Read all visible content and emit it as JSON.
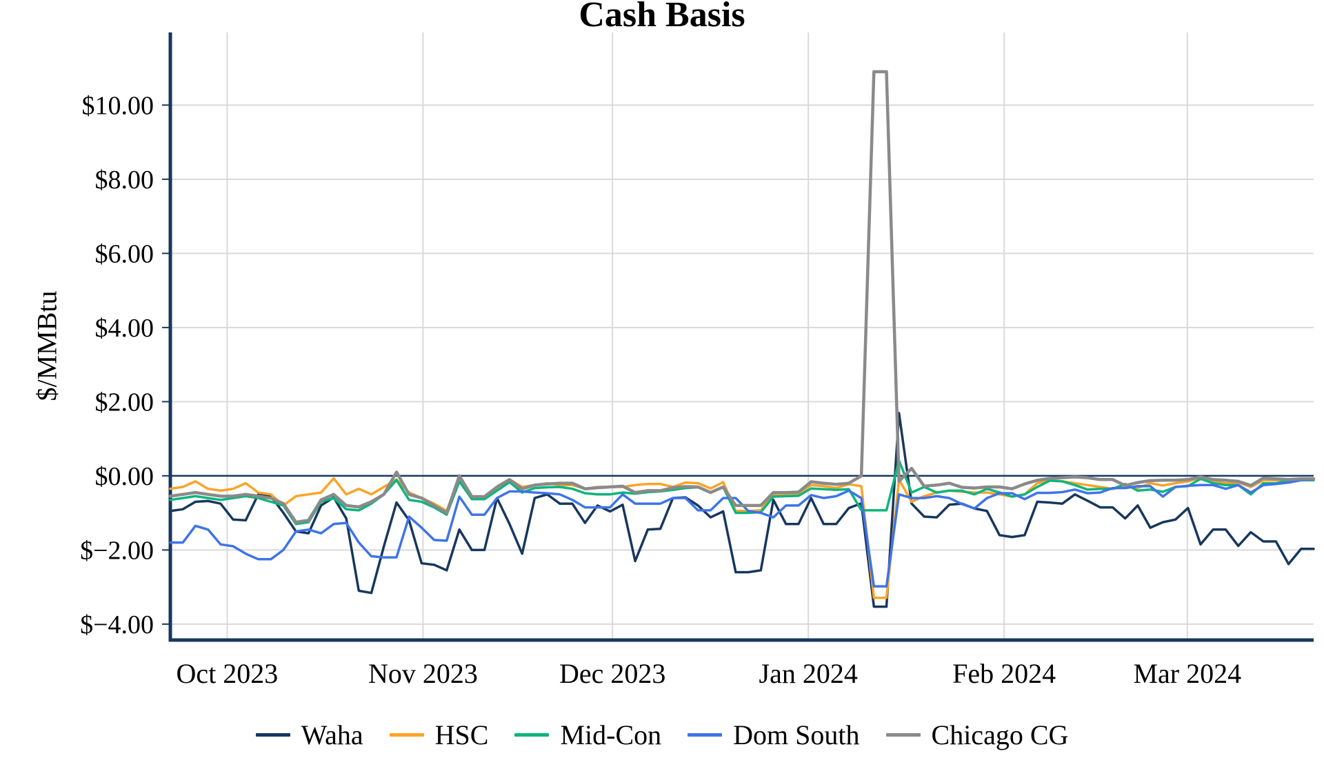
{
  "title": "Cash Basis",
  "y_axis_title": "$/MMBtu",
  "colors": {
    "axis": "#17375E",
    "gridline": "#D9D9D9",
    "zero_line": "#17375E",
    "background": "#FFFFFF",
    "title_text": "#000000"
  },
  "chart_data": {
    "type": "line",
    "title": "Cash Basis",
    "ylabel": "$/MMBtu",
    "ylim": [
      -4.43,
      11.96
    ],
    "grid": true,
    "legend_position": "bottom",
    "x_span_days": 181,
    "x_start": "2023-09-22",
    "x_end": "2024-03-21",
    "x_ticks": [
      {
        "label": "Oct 2023",
        "day": 9
      },
      {
        "label": "Nov 2023",
        "day": 40
      },
      {
        "label": "Dec 2023",
        "day": 70
      },
      {
        "label": "Jan 2024",
        "day": 101
      },
      {
        "label": "Feb 2024",
        "day": 132
      },
      {
        "label": "Mar 2024",
        "day": 161
      }
    ],
    "y_ticks": [
      {
        "label": "$10.00",
        "value": 10
      },
      {
        "label": "$8.00",
        "value": 8
      },
      {
        "label": "$6.00",
        "value": 6
      },
      {
        "label": "$4.00",
        "value": 4
      },
      {
        "label": "$2.00",
        "value": 2
      },
      {
        "label": "$0.00",
        "value": 0
      },
      {
        "label": "$−2.00",
        "value": -2
      },
      {
        "label": "$−4.00",
        "value": -4
      }
    ],
    "series": [
      {
        "name": "Waha",
        "color": "#17375E",
        "width": 3.5,
        "values": [
          -0.95,
          -0.9,
          -0.7,
          -0.68,
          -0.75,
          -1.18,
          -1.2,
          -0.5,
          -0.55,
          -1.0,
          -1.5,
          -1.55,
          -0.8,
          -0.58,
          -1.15,
          -3.1,
          -3.16,
          -1.9,
          -0.72,
          -1.2,
          -2.36,
          -2.4,
          -2.55,
          -1.45,
          -2.0,
          -2.0,
          -0.6,
          -1.3,
          -2.1,
          -0.6,
          -0.5,
          -0.75,
          -0.75,
          -1.27,
          -0.8,
          -0.96,
          -0.78,
          -2.3,
          -1.45,
          -1.43,
          -0.6,
          -0.58,
          -0.8,
          -1.12,
          -0.96,
          -2.6,
          -2.6,
          -2.55,
          -0.65,
          -1.3,
          -1.3,
          -0.6,
          -1.3,
          -1.3,
          -0.87,
          -0.74,
          -3.53,
          -3.53,
          1.69,
          -0.75,
          -1.1,
          -1.12,
          -0.78,
          -0.75,
          -0.88,
          -0.95,
          -1.6,
          -1.65,
          -1.6,
          -0.7,
          -0.72,
          -0.75,
          -0.5,
          -0.67,
          -0.85,
          -0.85,
          -1.15,
          -0.8,
          -1.4,
          -1.25,
          -1.18,
          -0.87,
          -1.85,
          -1.45,
          -1.45,
          -1.89,
          -1.52,
          -1.77,
          -1.77,
          -2.38,
          -1.97,
          -1.97
        ]
      },
      {
        "name": "HSC",
        "color": "#FCA327",
        "width": 3.5,
        "values": [
          -0.35,
          -0.3,
          -0.15,
          -0.35,
          -0.4,
          -0.35,
          -0.2,
          -0.45,
          -0.5,
          -0.8,
          -0.55,
          -0.5,
          -0.45,
          -0.07,
          -0.5,
          -0.35,
          -0.5,
          -0.3,
          -0.1,
          -0.45,
          -0.6,
          -0.75,
          -0.95,
          -0.05,
          -0.6,
          -0.6,
          -0.35,
          -0.1,
          -0.3,
          -0.25,
          -0.2,
          -0.25,
          -0.25,
          -0.35,
          -0.3,
          -0.3,
          -0.3,
          -0.25,
          -0.22,
          -0.22,
          -0.3,
          -0.18,
          -0.2,
          -0.34,
          -0.17,
          -0.95,
          -0.95,
          -0.93,
          -0.5,
          -0.5,
          -0.48,
          -0.25,
          -0.28,
          -0.33,
          -0.23,
          -0.28,
          -3.29,
          -3.29,
          -0.1,
          -0.7,
          -0.55,
          -0.45,
          -0.4,
          -0.43,
          -0.45,
          -0.45,
          -0.5,
          -0.56,
          -0.5,
          -0.2,
          -0.12,
          -0.15,
          -0.2,
          -0.25,
          -0.3,
          -0.35,
          -0.3,
          -0.33,
          -0.2,
          -0.26,
          -0.2,
          -0.15,
          -0.05,
          -0.15,
          -0.2,
          -0.18,
          -0.3,
          -0.12,
          -0.12,
          -0.1,
          -0.1,
          -0.1
        ]
      },
      {
        "name": "Mid-Con",
        "color": "#0CB57C",
        "width": 3.5,
        "values": [
          -0.65,
          -0.6,
          -0.55,
          -0.6,
          -0.65,
          -0.6,
          -0.55,
          -0.6,
          -0.7,
          -0.8,
          -1.3,
          -1.25,
          -0.7,
          -0.6,
          -0.9,
          -0.93,
          -0.75,
          -0.5,
          -0.11,
          -0.65,
          -0.7,
          -0.85,
          -1.05,
          -0.15,
          -0.63,
          -0.63,
          -0.4,
          -0.17,
          -0.45,
          -0.33,
          -0.31,
          -0.3,
          -0.35,
          -0.47,
          -0.5,
          -0.5,
          -0.45,
          -0.48,
          -0.44,
          -0.42,
          -0.38,
          -0.33,
          -0.31,
          -0.45,
          -0.3,
          -1.0,
          -1.0,
          -0.98,
          -0.56,
          -0.55,
          -0.54,
          -0.34,
          -0.36,
          -0.38,
          -0.36,
          -0.93,
          -0.93,
          -0.93,
          0.41,
          -0.45,
          -0.3,
          -0.45,
          -0.4,
          -0.4,
          -0.5,
          -0.35,
          -0.45,
          -0.56,
          -0.5,
          -0.3,
          -0.13,
          -0.15,
          -0.25,
          -0.37,
          -0.35,
          -0.35,
          -0.22,
          -0.4,
          -0.37,
          -0.43,
          -0.3,
          -0.28,
          -0.08,
          -0.2,
          -0.25,
          -0.25,
          -0.5,
          -0.2,
          -0.2,
          -0.13,
          -0.12,
          -0.12
        ]
      },
      {
        "name": "Dom South",
        "color": "#3E74E8",
        "width": 3.5,
        "values": [
          -1.8,
          -1.8,
          -1.35,
          -1.45,
          -1.85,
          -1.9,
          -2.1,
          -2.25,
          -2.25,
          -2.0,
          -1.5,
          -1.45,
          -1.55,
          -1.3,
          -1.27,
          -1.8,
          -2.17,
          -2.2,
          -2.2,
          -1.1,
          -1.4,
          -1.73,
          -1.75,
          -0.56,
          -1.05,
          -1.05,
          -0.6,
          -0.42,
          -0.42,
          -0.45,
          -0.47,
          -0.5,
          -0.65,
          -0.85,
          -0.85,
          -0.85,
          -0.5,
          -0.75,
          -0.75,
          -0.75,
          -0.6,
          -0.6,
          -0.93,
          -0.93,
          -0.6,
          -0.6,
          -0.95,
          -1.0,
          -1.12,
          -0.8,
          -0.8,
          -0.52,
          -0.6,
          -0.55,
          -0.4,
          -0.6,
          -2.98,
          -2.98,
          -0.5,
          -0.6,
          -0.6,
          -0.55,
          -0.6,
          -0.76,
          -0.88,
          -0.6,
          -0.47,
          -0.47,
          -0.63,
          -0.46,
          -0.46,
          -0.44,
          -0.37,
          -0.47,
          -0.45,
          -0.33,
          -0.33,
          -0.28,
          -0.28,
          -0.56,
          -0.3,
          -0.27,
          -0.25,
          -0.25,
          -0.35,
          -0.25,
          -0.45,
          -0.25,
          -0.22,
          -0.18,
          -0.12,
          -0.1
        ]
      },
      {
        "name": "Chicago CG",
        "color": "#8A8A8A",
        "width": 4.5,
        "values": [
          -0.55,
          -0.5,
          -0.45,
          -0.5,
          -0.55,
          -0.55,
          -0.5,
          -0.55,
          -0.6,
          -0.75,
          -1.25,
          -1.2,
          -0.65,
          -0.5,
          -0.8,
          -0.84,
          -0.7,
          -0.5,
          0.1,
          -0.5,
          -0.6,
          -0.8,
          -1.0,
          0.0,
          -0.56,
          -0.56,
          -0.3,
          -0.1,
          -0.35,
          -0.25,
          -0.22,
          -0.2,
          -0.2,
          -0.35,
          -0.32,
          -0.3,
          -0.28,
          -0.45,
          -0.4,
          -0.4,
          -0.32,
          -0.29,
          -0.3,
          -0.45,
          -0.3,
          -0.8,
          -0.8,
          -0.8,
          -0.45,
          -0.45,
          -0.44,
          -0.16,
          -0.2,
          -0.23,
          -0.2,
          0.0,
          10.9,
          10.9,
          -0.15,
          0.2,
          -0.28,
          -0.25,
          -0.2,
          -0.31,
          -0.33,
          -0.3,
          -0.3,
          -0.35,
          -0.22,
          -0.12,
          -0.07,
          -0.05,
          -0.03,
          -0.05,
          -0.1,
          -0.1,
          -0.26,
          -0.18,
          -0.13,
          -0.12,
          -0.12,
          -0.1,
          -0.03,
          -0.1,
          -0.12,
          -0.15,
          -0.26,
          -0.06,
          -0.08,
          -0.1,
          -0.08,
          -0.08
        ]
      }
    ]
  }
}
